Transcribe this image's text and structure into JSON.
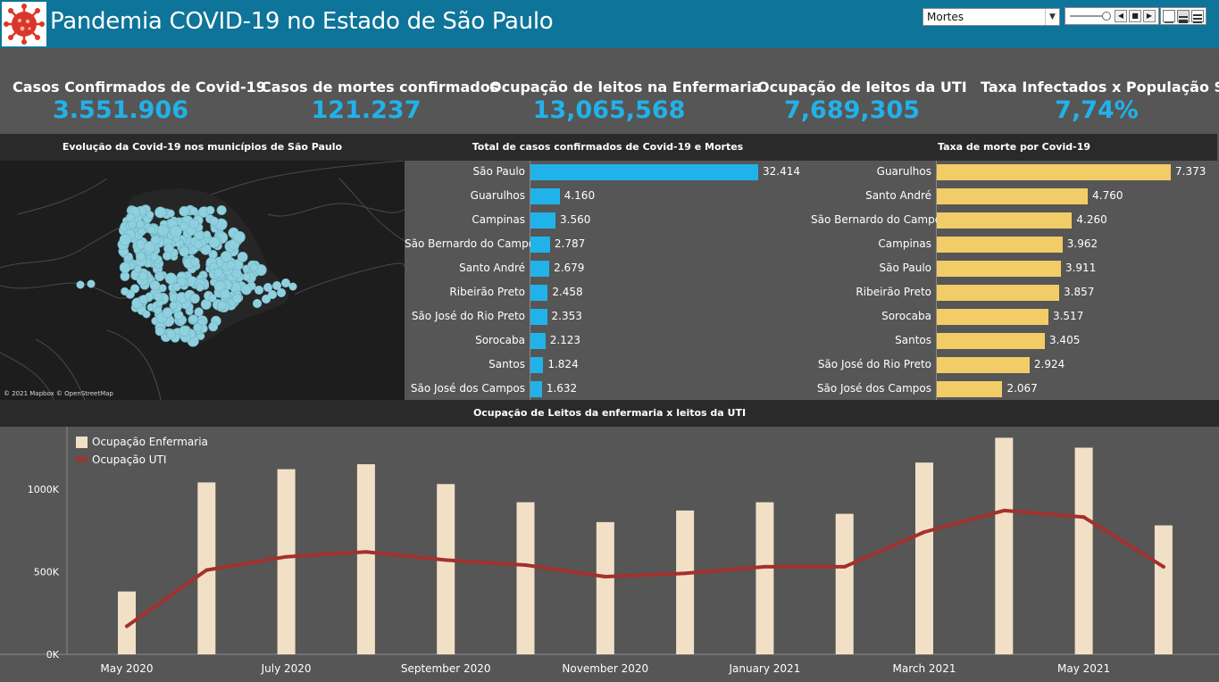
{
  "header": {
    "title": "Pandemia COVID-19  no Estado de São Paulo",
    "measure_select": "Mortes",
    "logo_icon": "virus-icon"
  },
  "kpis": [
    {
      "label": "Casos Confirmados de Covid-19",
      "value": "3.551.906"
    },
    {
      "label": "Casos de mortes confirmados",
      "value": "121.237"
    },
    {
      "label": "Ocupação de leitos na Enfermaria",
      "value": "13,065,568"
    },
    {
      "label": "Ocupação de leitos da UTI",
      "value": "7,689,305"
    },
    {
      "label": "Taxa Infectados x População SP",
      "value": "7,74%"
    }
  ],
  "sections": {
    "map_title": "Evolução da Covid-19 nos municípios de São Paulo",
    "cases_title": "Total de casos confirmados de Covid-19 e Mortes",
    "death_rate_title": "Taxa de morte por Covid-19",
    "bottom_title": "Ocupação de Leitos da enfermaria x leitos da UTI",
    "map_credit": "© 2021 Mapbox © OpenStreetMap"
  },
  "colors": {
    "accent_blue": "#21b2ea",
    "bar_yellow": "#f2cc67",
    "enfermaria": "#f2e0c6",
    "uti": "#a3312e",
    "header": "#0e7499"
  },
  "chart_data": [
    {
      "type": "bar",
      "orientation": "horizontal",
      "title": "Total de casos confirmados de Covid-19 e Mortes",
      "categories": [
        "São Paulo",
        "Guarulhos",
        "Campinas",
        "São Bernardo do Campo",
        "Santo André",
        "Ribeirão Preto",
        "São José do Rio Preto",
        "Sorocaba",
        "Santos",
        "São José dos Campos"
      ],
      "values": [
        32414,
        4160,
        3560,
        2787,
        2679,
        2458,
        2353,
        2123,
        1824,
        1632
      ],
      "labels": [
        "32.414",
        "4.160",
        "3.560",
        "2.787",
        "2.679",
        "2.458",
        "2.353",
        "2.123",
        "1.824",
        "1.632"
      ]
    },
    {
      "type": "bar",
      "orientation": "horizontal",
      "title": "Taxa de morte por Covid-19",
      "categories": [
        "Guarulhos",
        "Santo André",
        "São Bernardo do Campo",
        "Campinas",
        "São Paulo",
        "Ribeirão Preto",
        "Sorocaba",
        "Santos",
        "São José do Rio Preto",
        "São José dos Campos"
      ],
      "values": [
        7373,
        4760,
        4260,
        3962,
        3911,
        3857,
        3517,
        3405,
        2924,
        2067
      ],
      "labels": [
        "7.373",
        "4.760",
        "4.260",
        "3.962",
        "3.911",
        "3.857",
        "3.517",
        "3.405",
        "2.924",
        "2.067"
      ]
    },
    {
      "type": "bar",
      "title": "Ocupação de Leitos da enfermaria x leitos da UTI",
      "x": [
        "2020-05",
        "2020-06",
        "2020-07",
        "2020-08",
        "2020-09",
        "2020-10",
        "2020-11",
        "2020-12",
        "2021-01",
        "2021-02",
        "2021-03",
        "2021-04",
        "2021-05",
        "2021-06"
      ],
      "series": [
        {
          "name": "Ocupação Enfermaria",
          "type": "bar",
          "values": [
            380000,
            1040000,
            1120000,
            1150000,
            1030000,
            920000,
            800000,
            870000,
            920000,
            850000,
            1160000,
            1310000,
            1250000,
            780000
          ]
        },
        {
          "name": "Ocupação UTI",
          "type": "line",
          "values": [
            170000,
            510000,
            590000,
            620000,
            570000,
            540000,
            470000,
            490000,
            530000,
            530000,
            740000,
            870000,
            830000,
            530000
          ]
        }
      ],
      "ylim": [
        0,
        1350000
      ],
      "yticks": [
        "0K",
        "500K",
        "1000K"
      ],
      "yticks_values": [
        0,
        500000,
        1000000
      ],
      "xticks": [
        "May 2020",
        "July 2020",
        "September 2020",
        "November 2020",
        "January 2021",
        "March 2021",
        "May 2021"
      ],
      "grid": false,
      "legend": "top-left"
    }
  ]
}
